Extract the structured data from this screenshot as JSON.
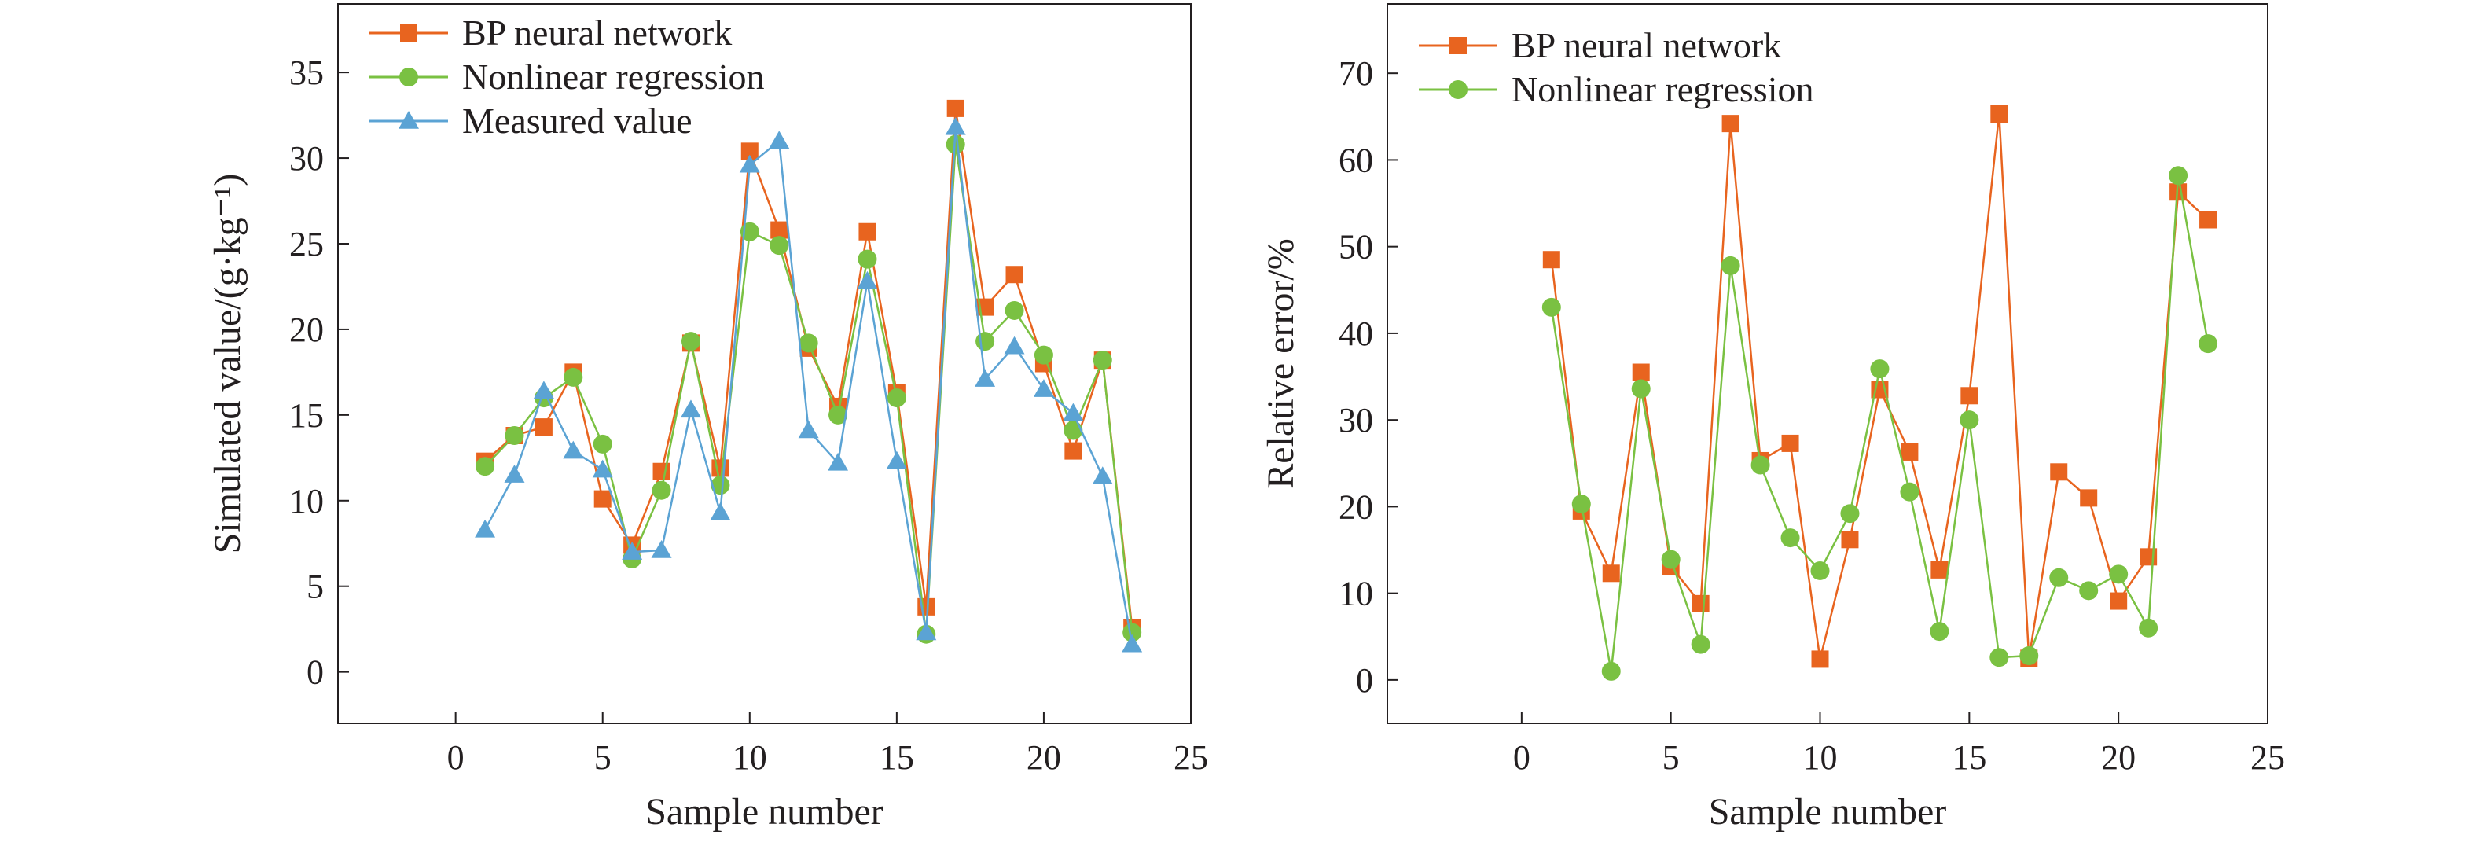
{
  "chart_data": [
    {
      "type": "line",
      "xlabel": "Sample number",
      "ylabel": "Simulated value/(g·kg⁻¹)",
      "xlim": [
        -4,
        25
      ],
      "ylim": [
        -3,
        39
      ],
      "xticks": [
        0,
        5,
        10,
        15,
        20,
        25
      ],
      "yticks": [
        0,
        5,
        10,
        15,
        20,
        25,
        30,
        35
      ],
      "grid": false,
      "legend_position": "top-left",
      "x": [
        1,
        2,
        3,
        4,
        5,
        6,
        7,
        8,
        9,
        10,
        11,
        12,
        13,
        14,
        15,
        16,
        17,
        18,
        19,
        20,
        21,
        22,
        23
      ],
      "series": [
        {
          "name": "BP neural network",
          "marker": "square",
          "color": "#e8641f",
          "values": [
            12.3,
            13.8,
            14.3,
            17.5,
            10.1,
            7.4,
            11.7,
            19.2,
            11.9,
            30.4,
            25.8,
            18.9,
            15.5,
            25.7,
            16.3,
            3.8,
            32.9,
            21.3,
            23.2,
            18.0,
            12.9,
            18.2,
            2.6
          ]
        },
        {
          "name": "Nonlinear regression",
          "marker": "circle",
          "color": "#7ac142",
          "values": [
            12.0,
            13.8,
            16.0,
            17.2,
            13.3,
            6.6,
            10.6,
            19.3,
            10.9,
            25.7,
            24.9,
            19.2,
            15.0,
            24.1,
            16.0,
            2.2,
            30.8,
            19.3,
            21.1,
            18.5,
            14.1,
            18.2,
            2.3
          ]
        },
        {
          "name": "Measured value",
          "marker": "triangle",
          "color": "#5ba3d4",
          "values": [
            8.3,
            11.5,
            16.4,
            12.9,
            11.8,
            7.0,
            7.1,
            15.3,
            9.3,
            29.6,
            31.0,
            14.1,
            12.2,
            22.8,
            12.3,
            2.3,
            31.8,
            17.1,
            19.0,
            16.5,
            15.1,
            11.4,
            1.6
          ]
        }
      ]
    },
    {
      "type": "line",
      "xlabel": "Sample number",
      "ylabel": "Relative error/%",
      "xlim": [
        -4.5,
        25
      ],
      "ylim": [
        -5,
        78
      ],
      "xticks": [
        0,
        5,
        10,
        15,
        20,
        25
      ],
      "yticks": [
        0,
        10,
        20,
        30,
        40,
        50,
        60,
        70
      ],
      "grid": false,
      "legend_position": "top-left",
      "x": [
        1,
        2,
        3,
        4,
        5,
        6,
        7,
        8,
        9,
        10,
        11,
        12,
        13,
        14,
        15,
        16,
        17,
        18,
        19,
        20,
        21,
        22,
        23
      ],
      "series": [
        {
          "name": "BP neural network",
          "marker": "square",
          "color": "#e8641f",
          "values": [
            48.5,
            19.5,
            12.3,
            35.5,
            13.1,
            8.8,
            64.2,
            25.3,
            27.3,
            2.4,
            16.2,
            33.5,
            26.3,
            12.7,
            32.8,
            65.3,
            2.5,
            24.0,
            21.0,
            9.1,
            14.2,
            56.3,
            53.1
          ]
        },
        {
          "name": "Nonlinear regression",
          "marker": "circle",
          "color": "#7ac142",
          "values": [
            43.0,
            20.3,
            1.0,
            33.6,
            13.9,
            4.1,
            47.8,
            24.8,
            16.4,
            12.6,
            19.2,
            35.9,
            21.7,
            5.6,
            30.0,
            2.6,
            2.8,
            11.8,
            10.3,
            12.2,
            6.0,
            58.2,
            38.8
          ]
        }
      ]
    }
  ]
}
